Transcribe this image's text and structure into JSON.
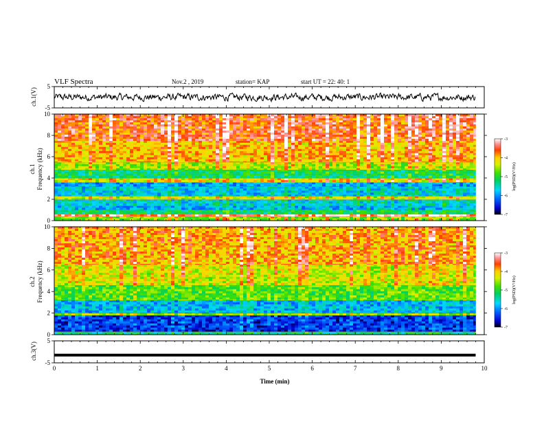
{
  "header": {
    "title": "VLF Spectra",
    "date": "Nov.2 , 2019",
    "station": "station= KAP",
    "start_ut": "start UT =  22: 40: 1"
  },
  "chart_data": [
    {
      "type": "line",
      "panel": "ch1-waveform",
      "ylabel": "ch.1(V)",
      "yticks": [
        "5",
        "-5"
      ],
      "ylim": [
        -5,
        5
      ],
      "xlim": [
        0,
        10
      ],
      "series": [
        {
          "description_note": "",
          "color": "#000000",
          "amplitude_range": [
            -2,
            2
          ]
        }
      ]
    },
    {
      "type": "heatmap",
      "panel": "ch1-spectrogram",
      "ylabel_line1": "ch.1",
      "ylabel_line2": "Frequency (kHz)",
      "yticks": [
        "0",
        "2",
        "4",
        "6",
        "8",
        "10"
      ],
      "ylim": [
        0,
        10
      ],
      "xlim": [
        0,
        9.8
      ],
      "colorbar": {
        "label": "log(PSD)(V²/Hz)",
        "ticks": [
          "-3",
          "-4",
          "-5",
          "-6",
          "-7"
        ],
        "range": [
          -7,
          -3
        ]
      },
      "bands_khz": [
        {
          "from": 0.0,
          "to": 0.4,
          "level": -4.6
        },
        {
          "from": 0.4,
          "to": 0.6,
          "level": -3.4
        },
        {
          "from": 0.6,
          "to": 1.0,
          "level": -5.2
        },
        {
          "from": 1.0,
          "to": 1.4,
          "level": -5.8
        },
        {
          "from": 1.4,
          "to": 2.0,
          "level": -5.6
        },
        {
          "from": 2.0,
          "to": 2.3,
          "level": -4.4
        },
        {
          "from": 2.3,
          "to": 3.2,
          "level": -5.7
        },
        {
          "from": 3.2,
          "to": 3.6,
          "level": -5.9
        },
        {
          "from": 3.6,
          "to": 4.0,
          "level": -4.2
        },
        {
          "from": 4.0,
          "to": 4.8,
          "level": -5.2
        },
        {
          "from": 4.8,
          "to": 5.5,
          "level": -4.5
        },
        {
          "from": 5.5,
          "to": 7.5,
          "level": -4.0
        },
        {
          "from": 7.5,
          "to": 10.0,
          "level": -3.6
        }
      ]
    },
    {
      "type": "heatmap",
      "panel": "ch2-spectrogram",
      "ylabel_line1": "ch.2",
      "ylabel_line2": "Frequency (kHz)",
      "yticks": [
        "0",
        "2",
        "4",
        "6",
        "8",
        "10"
      ],
      "ylim": [
        0,
        10
      ],
      "xlim": [
        0,
        9.8
      ],
      "colorbar": {
        "label": "log(PSD)(V²/Hz)",
        "ticks": [
          "-3",
          "-4",
          "-5",
          "-6",
          "-7"
        ],
        "range": [
          -7,
          -3
        ]
      },
      "bands_khz": [
        {
          "from": 0.0,
          "to": 0.3,
          "level": -5.3
        },
        {
          "from": 0.3,
          "to": 1.8,
          "level": -6.4
        },
        {
          "from": 1.8,
          "to": 2.0,
          "level": -4.6
        },
        {
          "from": 2.0,
          "to": 3.2,
          "level": -5.8
        },
        {
          "from": 3.2,
          "to": 4.6,
          "level": -4.8
        },
        {
          "from": 4.6,
          "to": 6.5,
          "level": -4.3
        },
        {
          "from": 6.5,
          "to": 10.0,
          "level": -3.9
        }
      ]
    },
    {
      "type": "line",
      "panel": "ch3-waveform",
      "ylabel": "ch.3(V)",
      "yticks": [
        "5",
        "-5"
      ],
      "ylim": [
        -5,
        5
      ],
      "xlim": [
        0,
        10
      ],
      "series": [
        {
          "color": "#000000",
          "constant_value": -1.5
        }
      ]
    }
  ],
  "xaxis": {
    "label": "Time (min)",
    "ticks": [
      "0",
      "1",
      "2",
      "3",
      "4",
      "5",
      "6",
      "7",
      "8",
      "9",
      "10"
    ],
    "range": [
      0,
      10
    ]
  }
}
